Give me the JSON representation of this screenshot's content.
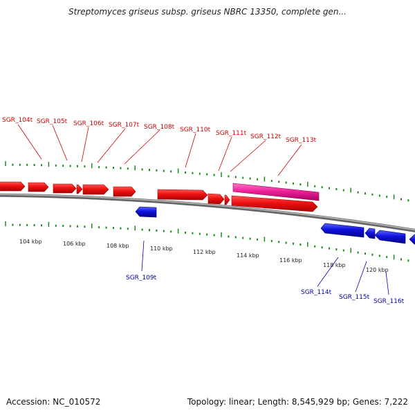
{
  "title": "Streptomyces griseus subsp. griseus NBRC 13350, complete gen...",
  "footer": {
    "accession": "Accession: NC_010572",
    "summary": "Topology: linear; Length: 8,545,929 bp; Genes: 7,222"
  },
  "colors": {
    "forward_gene": "#ee1111",
    "reverse_gene": "#1111dd",
    "highlighted_gene": "#ee2299",
    "backbone": "#888888",
    "tick": "#1a8a1a",
    "forward_label": "#cc0000",
    "reverse_label": "#0000aa"
  },
  "scale": {
    "unit": "kbp",
    "labels": [
      "104 kbp",
      "106 kbp",
      "108 kbp",
      "110 kbp",
      "112 kbp",
      "114 kbp",
      "116 kbp",
      "118 kbp",
      "120 kbp"
    ]
  },
  "labels_forward": [
    "SGR_104t",
    "SGR_105t",
    "SGR_106t",
    "SGR_107t",
    "SGR_108t",
    "SGR_110t",
    "SGR_111t",
    "SGR_112t",
    "SGR_113t"
  ],
  "labels_reverse": [
    "SGR_109t",
    "SGR_114t",
    "SGR_115t",
    "SGR_116t"
  ]
}
